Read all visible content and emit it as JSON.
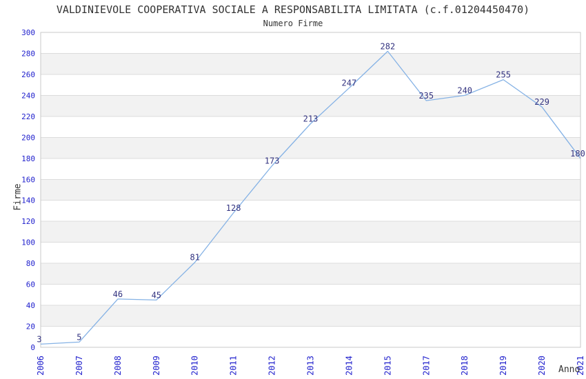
{
  "chart_data": {
    "type": "line",
    "title": "VALDINIEVOLE COOPERATIVA SOCIALE A RESPONSABILITA LIMITATA (c.f.01204450470)",
    "subtitle": "Numero Firme",
    "xlabel": "Anno",
    "ylabel": "Firme",
    "categories": [
      "2006",
      "2007",
      "2008",
      "2009",
      "2010",
      "2011",
      "2012",
      "2013",
      "2014",
      "2015",
      "2017",
      "2018",
      "2019",
      "2020",
      "2021"
    ],
    "values": [
      3,
      5,
      46,
      45,
      81,
      128,
      173,
      213,
      247,
      282,
      235,
      240,
      255,
      229,
      180
    ],
    "ylim": [
      0,
      300
    ],
    "ytick_step": 20,
    "yticks": [
      0,
      20,
      40,
      60,
      80,
      100,
      120,
      140,
      160,
      180,
      200,
      220,
      240,
      260,
      280,
      300
    ],
    "grid": "horizontal-only",
    "legend": "none",
    "point_markers": false,
    "notes": "year 2016 absent from axis; alternating shaded horizontal bands",
    "colors": {
      "line": "#85b2e5",
      "tick_label": "#2121cd",
      "data_label": "#333380",
      "text": "#333333",
      "band": "#f2f2f2",
      "gridline": "#dcdcdc",
      "border": "#c9c9c9",
      "background": "#ffffff"
    }
  }
}
